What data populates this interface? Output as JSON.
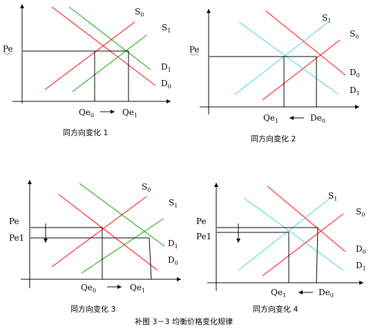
{
  "panels": [
    {
      "label_s0": "S",
      "sub_s0": "0",
      "label_s1": "S",
      "sub_s1": "1",
      "label_d1": "D",
      "sub_d1": "1",
      "label_d0": "D",
      "sub_d0": "0",
      "label_pe": "Pe",
      "label_q0": "Qe",
      "sub_q0": "0",
      "label_q1": "Qe",
      "sub_q1": "1",
      "caption": "同方向变化 1"
    },
    {
      "label_s1": "S",
      "sub_s1": "1",
      "label_s0": "S",
      "sub_s0": "0",
      "label_d0": "D",
      "sub_d0": "0",
      "label_d1": "D",
      "sub_d1": "1",
      "label_pe": "Pe",
      "label_q1": "Qe",
      "sub_q1": "1",
      "label_de0": "De",
      "sub_de0": "0",
      "caption": "同方向变化 2"
    },
    {
      "label_s0": "S",
      "sub_s0": "0",
      "label_s1": "S",
      "sub_s1": "1",
      "label_d1": "D",
      "sub_d1": "1",
      "label_d0": "D",
      "sub_d0": "0",
      "label_pe": "Pe",
      "label_pe1": "Pe1",
      "label_q0": "Qe",
      "sub_q0": "0",
      "label_q1": "Qe",
      "sub_q1": "1",
      "caption": "同方向变化 3"
    },
    {
      "label_s1": "S",
      "sub_s1": "1",
      "label_s0": "S",
      "sub_s0": "0",
      "label_d0": "D",
      "sub_d0": "0",
      "label_d1": "D",
      "sub_d1": "1",
      "label_pe": "Pe",
      "label_pe1": "Pe1",
      "label_q1": "Qe",
      "sub_q1": "1",
      "label_de0": "De",
      "sub_de0": "0",
      "caption": "同方向变化 4"
    }
  ],
  "figure_caption": "补图 3－3  均衡价格变化规律",
  "colors": {
    "demand": "#ff0000",
    "supply_green": "#00a000",
    "supply_cyan": "#44d4dd"
  }
}
